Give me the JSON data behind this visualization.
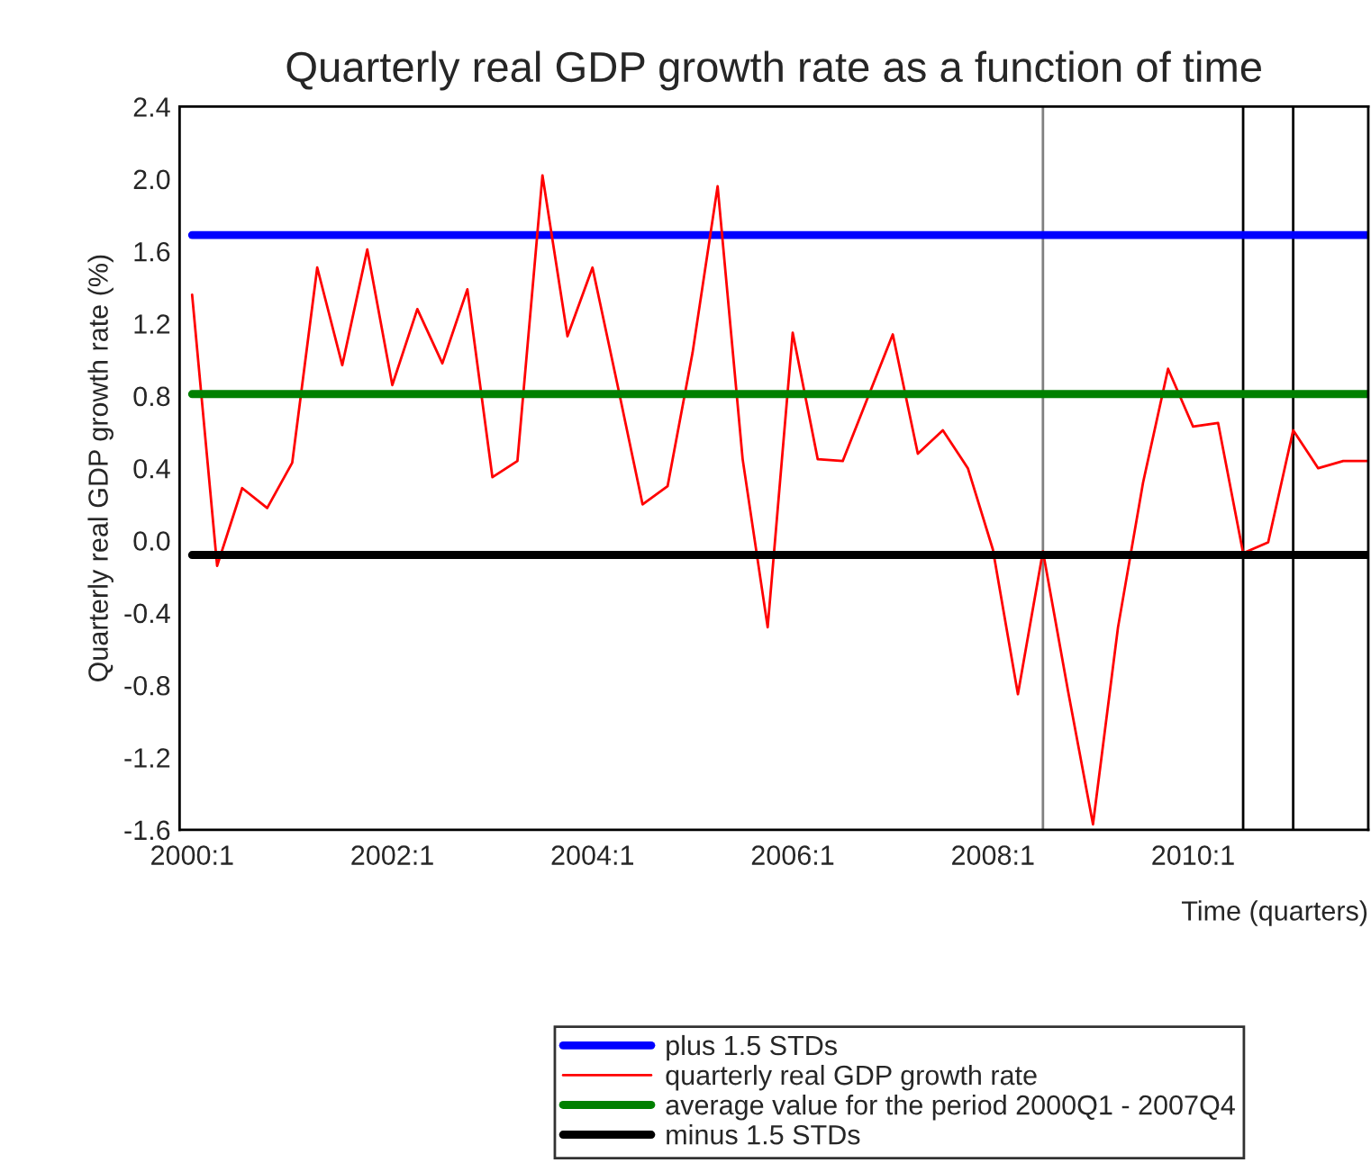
{
  "chart_data": {
    "type": "line",
    "title": "Quarterly real GDP growth rate as a function of time",
    "xlabel": "Time (quarters)",
    "ylabel": "Quarterly real GDP growth rate (%)",
    "categories": [
      "2000:1",
      null,
      null,
      null,
      null,
      null,
      null,
      null,
      "2002:1",
      null,
      null,
      null,
      null,
      null,
      null,
      null,
      "2004:1",
      null,
      null,
      null,
      null,
      null,
      null,
      null,
      "2006:1",
      null,
      null,
      null,
      null,
      null,
      null,
      null,
      "2008:1",
      null,
      null,
      null,
      null,
      null,
      null,
      null,
      "2010:1",
      null,
      null,
      null,
      null,
      null,
      null,
      null
    ],
    "series": [
      {
        "name": "plus 1.5 STDs",
        "color": "#0000ff",
        "values": [
          1.69,
          1.69,
          1.69,
          1.69,
          1.69,
          1.69,
          1.69,
          1.69,
          1.69,
          1.69,
          1.69,
          1.69,
          1.69,
          1.69,
          1.69,
          1.69,
          1.69,
          1.69,
          1.69,
          1.69,
          1.69,
          1.69,
          1.69,
          1.69,
          1.69,
          1.69,
          1.69,
          1.69,
          1.69,
          1.69,
          1.69,
          1.69,
          1.69,
          1.69,
          1.69,
          1.69,
          1.69,
          1.69,
          1.69,
          1.69,
          1.69,
          1.69,
          1.69,
          1.69,
          1.69,
          1.69,
          1.69,
          1.69
        ]
      },
      {
        "name": "quarterly real GDP growth rate",
        "color": "#ff0000",
        "values": [
          1.36,
          -0.14,
          0.29,
          0.18,
          0.43,
          1.51,
          0.97,
          1.61,
          0.86,
          1.28,
          0.98,
          1.39,
          0.35,
          0.44,
          2.02,
          1.13,
          1.51,
          0.86,
          0.2,
          0.3,
          1.04,
          1.96,
          0.45,
          -0.48,
          1.15,
          0.45,
          0.44,
          0.79,
          1.14,
          0.48,
          0.61,
          0.4,
          -0.05,
          -0.85,
          -0.06,
          -0.83,
          -1.57,
          -0.48,
          0.32,
          0.95,
          0.63,
          0.65,
          -0.07,
          -0.01,
          0.61,
          0.4,
          0.44,
          0.44
        ]
      },
      {
        "name": "average value for the period 2000Q1 - 2007Q4",
        "color": "#008000",
        "values": [
          0.81,
          0.81,
          0.81,
          0.81,
          0.81,
          0.81,
          0.81,
          0.81,
          0.81,
          0.81,
          0.81,
          0.81,
          0.81,
          0.81,
          0.81,
          0.81,
          0.81,
          0.81,
          0.81,
          0.81,
          0.81,
          0.81,
          0.81,
          0.81,
          0.81,
          0.81,
          0.81,
          0.81,
          0.81,
          0.81,
          0.81,
          0.81,
          0.81,
          0.81,
          0.81,
          0.81,
          0.81,
          0.81,
          0.81,
          0.81,
          0.81,
          0.81,
          0.81,
          0.81,
          0.81,
          0.81,
          0.81,
          0.81
        ]
      },
      {
        "name": "minus 1.5 STDs",
        "color": "#000000",
        "values": [
          -0.08,
          -0.08,
          -0.08,
          -0.08,
          -0.08,
          -0.08,
          -0.08,
          -0.08,
          -0.08,
          -0.08,
          -0.08,
          -0.08,
          -0.08,
          -0.08,
          -0.08,
          -0.08,
          -0.08,
          -0.08,
          -0.08,
          -0.08,
          -0.08,
          -0.08,
          -0.08,
          -0.08,
          -0.08,
          -0.08,
          -0.08,
          -0.08,
          -0.08,
          -0.08,
          -0.08,
          -0.08,
          -0.08,
          -0.08,
          -0.08,
          -0.08,
          -0.08,
          -0.08,
          -0.08,
          -0.08,
          -0.08,
          -0.08,
          -0.08,
          -0.08,
          -0.08,
          -0.08,
          -0.08,
          -0.08
        ]
      }
    ],
    "ylim": [
      -1.6,
      2.4
    ],
    "yticks": [
      -1.6,
      -1.2,
      -0.8,
      -0.4,
      {
        "value": 0,
        "label": "0.0"
      },
      0.4,
      0.8,
      1.2,
      1.6,
      {
        "value": 2,
        "label": "2.0"
      },
      2.4
    ],
    "legend": "bottom",
    "marker": "none",
    "line_style": "solid"
  }
}
